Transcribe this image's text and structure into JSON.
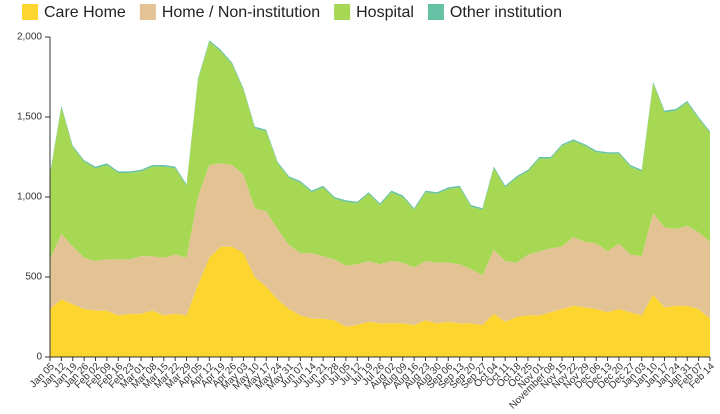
{
  "chart_data": {
    "type": "stacked_area",
    "categories": [
      "Jan 05",
      "Jan 12",
      "Jan 19",
      "Jan 26",
      "Feb 02",
      "Feb 09",
      "Feb 16",
      "Feb 23",
      "Mar 01",
      "Mar 08",
      "Mar 15",
      "Mar 22",
      "Mar 29",
      "Apr 05",
      "Apr 12",
      "Apr 19",
      "Apr 26",
      "May 03",
      "May 10",
      "May 17",
      "May 24",
      "May 31",
      "Jun 07",
      "Jun 14",
      "Jun 21",
      "Jun 28",
      "Jul 05",
      "Jul 12",
      "Jul 19",
      "Jul 26",
      "Aug 02",
      "Aug 09",
      "Aug 16",
      "Aug 23",
      "Aug 30",
      "Sep 06",
      "Sep 13",
      "Sep 20",
      "Sep 27",
      "Oct 04",
      "Oct 11",
      "Oct 18",
      "Oct 25",
      "Nov 01",
      "November 08",
      "Nov 15",
      "Nov 22",
      "Nov 29",
      "Dec 06",
      "Dec 13",
      "Dec 20",
      "Dec 27",
      "Jan 03",
      "Jan 10",
      "Jan 17",
      "Jan 24",
      "Jan 31",
      "Feb 07",
      "Feb 14"
    ],
    "series": [
      {
        "name": "Care Home",
        "color": "#fdd52f",
        "values": [
          300,
          360,
          330,
          300,
          290,
          290,
          260,
          270,
          270,
          290,
          260,
          270,
          260,
          450,
          620,
          690,
          690,
          650,
          500,
          440,
          360,
          300,
          260,
          240,
          240,
          230,
          190,
          200,
          220,
          210,
          210,
          210,
          200,
          230,
          210,
          220,
          210,
          210,
          200,
          270,
          220,
          250,
          260,
          260,
          280,
          300,
          320,
          310,
          300,
          280,
          300,
          280,
          260,
          390,
          310,
          320,
          320,
          300,
          240
        ]
      },
      {
        "name": "Home / Non-institution",
        "color": "#e3c394",
        "values": [
          310,
          410,
          360,
          320,
          310,
          320,
          350,
          340,
          360,
          340,
          360,
          370,
          360,
          550,
          580,
          520,
          510,
          490,
          430,
          470,
          440,
          400,
          390,
          410,
          390,
          380,
          380,
          380,
          380,
          370,
          390,
          380,
          360,
          370,
          380,
          370,
          370,
          340,
          310,
          400,
          380,
          340,
          380,
          400,
          400,
          390,
          430,
          410,
          410,
          380,
          410,
          360,
          370,
          510,
          500,
          480,
          500,
          480,
          480
        ]
      },
      {
        "name": "Hospital",
        "color": "#a6d854",
        "values": [
          530,
          790,
          620,
          600,
          580,
          590,
          540,
          540,
          530,
          560,
          570,
          540,
          450,
          730,
          770,
          700,
          630,
          530,
          500,
          500,
          410,
          420,
          440,
          380,
          430,
          380,
          400,
          380,
          420,
          370,
          430,
          410,
          360,
          430,
          430,
          460,
          480,
          390,
          410,
          510,
          460,
          530,
          520,
          580,
          560,
          630,
          600,
          600,
          570,
          610,
          560,
          550,
          530,
          810,
          720,
          740,
          770,
          710,
          680
        ]
      },
      {
        "name": "Other institution",
        "color": "#66c2a5",
        "values": [
          10,
          10,
          10,
          10,
          10,
          10,
          10,
          10,
          10,
          10,
          10,
          10,
          10,
          10,
          10,
          10,
          10,
          10,
          10,
          10,
          10,
          10,
          10,
          10,
          10,
          10,
          10,
          10,
          10,
          10,
          10,
          10,
          10,
          10,
          10,
          10,
          10,
          10,
          10,
          10,
          10,
          10,
          10,
          10,
          10,
          10,
          10,
          10,
          10,
          10,
          10,
          10,
          10,
          10,
          10,
          10,
          10,
          10,
          10
        ]
      }
    ],
    "ylim": [
      0,
      2000
    ],
    "yticks": [
      0,
      500,
      {
        "value": 1000,
        "label": "1,000"
      },
      {
        "value": 1500,
        "label": "1,500"
      },
      {
        "value": 2000,
        "label": "2,000"
      }
    ],
    "legend": "top"
  }
}
